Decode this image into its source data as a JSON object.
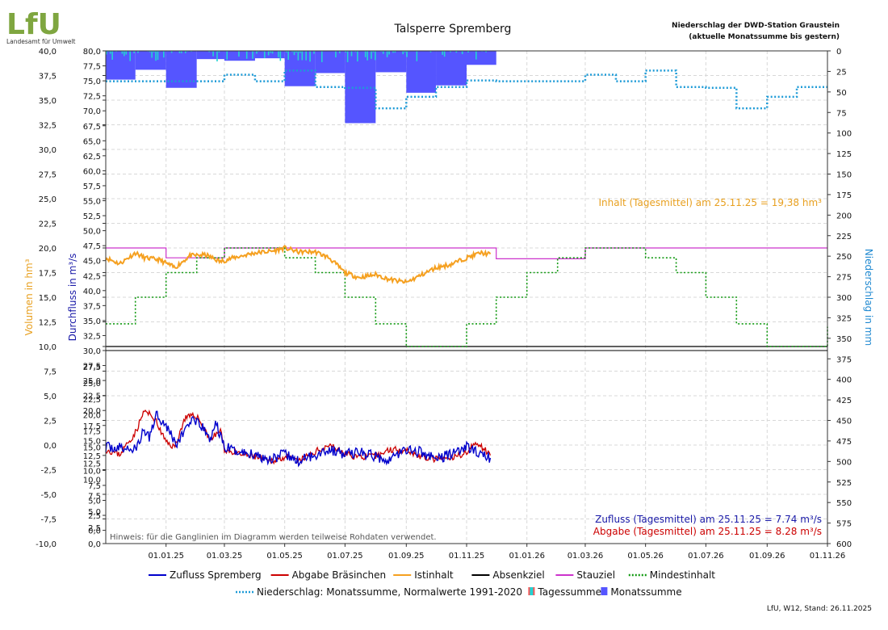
{
  "logo": {
    "mark": "LfU",
    "name": "Landesamt für Umwelt"
  },
  "title": "Talsperre Spremberg",
  "precip_note": {
    "line1": "Niederschlag der DWD-Station Graustein",
    "line2": "(aktuelle Monatssumme bis gestern)"
  },
  "footer": "LfU, W12, Stand: 26.11.2025",
  "hint": "Hinweis: für die Ganglinien im Diagramm werden teilweise Rohdaten verwendet.",
  "annotations": {
    "inhalt": "Inhalt (Tagesmittel) am 25.11.25 = 19,38 hm³",
    "zufluss": "Zufluss (Tagesmittel) am 25.11.25 = 7.74 m³/s",
    "abgabe": "Abgabe (Tagesmittel) am 25.11.25 = 8.28 m³/s"
  },
  "colors": {
    "zufluss": "#0000cc",
    "abgabe": "#cc0000",
    "istinhalt": "#f5a020",
    "absenkziel": "#000000",
    "stauziel": "#cc33cc",
    "mindestinhalt": "#119911",
    "normal": "#1e9bd7",
    "tagessumme": "#22d3d3",
    "monatssumme": "#5555ff",
    "axis_volume": "#e8a020",
    "axis_flow": "#1a1aa8",
    "axis_precip": "#1e88d0"
  },
  "axes": {
    "volume_label": "Volumen in hm³",
    "flow_label": "Durchfluss in m³/s",
    "precip_label": "Niederschlag in mm",
    "volume_ticks": [
      "40,0",
      "37,5",
      "35,0",
      "32,5",
      "30,0",
      "27,5",
      "25,0",
      "22,5",
      "20,0",
      "17,5",
      "15,0",
      "12,5",
      "10,0",
      "7,5",
      "5,0",
      "2,5",
      "0,0",
      "-2,5",
      "-5,0",
      "-7,5",
      "-10,0"
    ],
    "flow_ticks": [
      "80,0",
      "77,5",
      "75,0",
      "72,5",
      "70,0",
      "67,5",
      "65,0",
      "62,5",
      "60,0",
      "57,5",
      "55,0",
      "52,5",
      "50,0",
      "47,5",
      "45,0",
      "42,5",
      "40,0",
      "37,5",
      "35,0",
      "32,5",
      "30,0",
      "27,5",
      "25,0",
      "22,5",
      "20,0",
      "17,5",
      "15,0",
      "12,5",
      "10,0",
      "7,5",
      "5,0",
      "2,5",
      "0,0"
    ],
    "precip_ticks": [
      "0",
      "25",
      "50",
      "75",
      "100",
      "125",
      "150",
      "175",
      "200",
      "225",
      "250",
      "275",
      "300",
      "325",
      "350",
      "375",
      "400",
      "425",
      "450",
      "475",
      "500",
      "525",
      "550",
      "575",
      "600"
    ],
    "x_ticks": [
      "01.01.25",
      "01.03.25",
      "01.05.25",
      "01.07.25",
      "01.09.25",
      "01.11.25",
      "01.01.26",
      "01.03.26",
      "01.05.26",
      "01.07.26",
      "01.09.26",
      "01.11.26"
    ]
  },
  "legend": {
    "row1": [
      {
        "key": "zufluss",
        "label": "Zufluss Spremberg",
        "style": "solid"
      },
      {
        "key": "abgabe",
        "label": "Abgabe Bräsinchen",
        "style": "solid"
      },
      {
        "key": "istinhalt",
        "label": "Istinhalt",
        "style": "solid"
      },
      {
        "key": "absenkziel",
        "label": "Absenkziel",
        "style": "solid"
      },
      {
        "key": "stauziel",
        "label": "Stauziel",
        "style": "solid"
      },
      {
        "key": "mindestinhalt",
        "label": "Mindestinhalt",
        "style": "dotted"
      }
    ],
    "row2": [
      {
        "key": "normal",
        "label": "Niederschlag: Monatssumme, Normalwerte 1991-2020",
        "style": "dotted"
      },
      {
        "key": "tagessumme",
        "label": "Tagessumme",
        "style": "box2"
      },
      {
        "key": "monatssumme",
        "label": "Monatssumme",
        "style": "box"
      }
    ]
  },
  "chart_data": {
    "type": "line",
    "x_start": "01.11.24",
    "x_end": "01.11.26",
    "volume_axis": {
      "label": "Volumen in hm³",
      "ylim": [
        -10,
        40
      ]
    },
    "flow_axis": {
      "label": "Durchfluss in m³/s",
      "ylim": [
        0,
        80
      ]
    },
    "precip_axis": {
      "label": "Niederschlag in mm",
      "ylim": [
        0,
        600
      ],
      "inverted": true
    },
    "stauziel": [
      [
        "01.11.24",
        20.0
      ],
      [
        "01.01.25",
        20.0
      ],
      [
        "01.01.25",
        19.0
      ],
      [
        "01.03.25",
        19.0
      ],
      [
        "01.03.25",
        20.0
      ],
      [
        "01.12.25",
        20.0
      ],
      [
        "01.12.25",
        18.9
      ],
      [
        "01.03.26",
        18.9
      ],
      [
        "01.03.26",
        20.0
      ],
      [
        "01.11.26",
        20.0
      ]
    ],
    "absenkziel": [
      [
        "01.11.24",
        10.0
      ],
      [
        "01.11.26",
        10.0
      ]
    ],
    "mindestinhalt": [
      [
        "01.11.24",
        12.3
      ],
      [
        "01.12.24",
        12.3
      ],
      [
        "01.12.24",
        15.0
      ],
      [
        "01.01.25",
        15.0
      ],
      [
        "01.01.25",
        17.5
      ],
      [
        "01.02.25",
        17.5
      ],
      [
        "01.02.25",
        19.0
      ],
      [
        "01.03.25",
        19.0
      ],
      [
        "01.03.25",
        20.0
      ],
      [
        "01.05.25",
        20.0
      ],
      [
        "01.05.25",
        19.0
      ],
      [
        "01.06.25",
        19.0
      ],
      [
        "01.06.25",
        17.5
      ],
      [
        "01.07.25",
        17.5
      ],
      [
        "01.07.25",
        15.0
      ],
      [
        "01.08.25",
        15.0
      ],
      [
        "01.08.25",
        12.3
      ],
      [
        "01.09.25",
        12.3
      ],
      [
        "01.09.25",
        10.0
      ],
      [
        "01.11.25",
        10.0
      ],
      [
        "01.11.25",
        12.3
      ],
      [
        "01.12.25",
        12.3
      ],
      [
        "01.12.25",
        15.0
      ],
      [
        "01.01.26",
        15.0
      ],
      [
        "01.01.26",
        17.5
      ],
      [
        "01.02.26",
        17.5
      ],
      [
        "01.02.26",
        19.0
      ],
      [
        "01.03.26",
        19.0
      ],
      [
        "01.03.26",
        20.0
      ],
      [
        "01.05.26",
        20.0
      ],
      [
        "01.05.26",
        19.0
      ],
      [
        "01.06.26",
        19.0
      ],
      [
        "01.06.26",
        17.5
      ],
      [
        "01.07.26",
        17.5
      ],
      [
        "01.07.26",
        15.0
      ],
      [
        "01.08.26",
        15.0
      ],
      [
        "01.08.26",
        12.3
      ],
      [
        "01.09.26",
        12.3
      ],
      [
        "01.09.26",
        10.0
      ],
      [
        "01.11.26",
        10.0
      ],
      [
        "01.11.26",
        12.0
      ]
    ],
    "istinhalt": [
      [
        "01.11.24",
        19.0
      ],
      [
        "15.11.24",
        18.4
      ],
      [
        "01.12.24",
        19.5
      ],
      [
        "10.12.24",
        19.0
      ],
      [
        "25.12.24",
        18.8
      ],
      [
        "10.01.25",
        18.0
      ],
      [
        "25.01.25",
        19.2
      ],
      [
        "10.02.25",
        19.3
      ],
      [
        "25.02.25",
        18.6
      ],
      [
        "10.03.25",
        19.0
      ],
      [
        "01.04.25",
        19.5
      ],
      [
        "20.04.25",
        19.7
      ],
      [
        "01.05.25",
        20.0
      ],
      [
        "15.05.25",
        19.6
      ],
      [
        "01.06.25",
        19.6
      ],
      [
        "15.06.25",
        19.0
      ],
      [
        "01.07.25",
        17.5
      ],
      [
        "15.07.25",
        17.0
      ],
      [
        "01.08.25",
        17.3
      ],
      [
        "15.08.25",
        16.8
      ],
      [
        "01.09.25",
        16.5
      ],
      [
        "15.09.25",
        17.2
      ],
      [
        "01.10.25",
        18.0
      ],
      [
        "15.10.25",
        18.3
      ],
      [
        "01.11.25",
        19.0
      ],
      [
        "15.11.25",
        19.5
      ],
      [
        "25.11.25",
        19.38
      ]
    ],
    "monatssumme_mm": [
      [
        "11.24",
        35
      ],
      [
        "12.24",
        23
      ],
      [
        "01.25",
        45
      ],
      [
        "02.25",
        10
      ],
      [
        "03.25",
        12
      ],
      [
        "04.25",
        9
      ],
      [
        "05.25",
        43
      ],
      [
        "06.25",
        27
      ],
      [
        "07.25",
        88
      ],
      [
        "08.25",
        26
      ],
      [
        "09.25",
        51
      ],
      [
        "10.25",
        42
      ],
      [
        "11.25",
        17
      ]
    ],
    "normalwerte_mm": [
      [
        "11.24",
        37
      ],
      [
        "12.24",
        37
      ],
      [
        "01.25",
        37
      ],
      [
        "02.25",
        37
      ],
      [
        "03.25",
        29
      ],
      [
        "04.25",
        37
      ],
      [
        "05.25",
        24
      ],
      [
        "06.25",
        44
      ],
      [
        "07.25",
        45
      ],
      [
        "08.25",
        70
      ],
      [
        "09.25",
        56
      ],
      [
        "10.25",
        44
      ],
      [
        "11.25",
        36
      ],
      [
        "12.25",
        37
      ],
      [
        "01.26",
        37
      ],
      [
        "02.26",
        37
      ],
      [
        "03.26",
        29
      ],
      [
        "04.26",
        37
      ],
      [
        "05.26",
        24
      ],
      [
        "06.26",
        44
      ],
      [
        "07.26",
        45
      ],
      [
        "08.26",
        70
      ],
      [
        "09.26",
        56
      ],
      [
        "10.26",
        44
      ]
    ],
    "zufluss": [
      [
        "01.11.24",
        10.0
      ],
      [
        "15.11.24",
        9.8
      ],
      [
        "01.12.24",
        9.5
      ],
      [
        "10.12.24",
        13.5
      ],
      [
        "15.12.24",
        12.0
      ],
      [
        "22.12.24",
        17.0
      ],
      [
        "01.01.25",
        14.5
      ],
      [
        "12.01.25",
        10.5
      ],
      [
        "25.01.25",
        15.5
      ],
      [
        "05.02.25",
        14.5
      ],
      [
        "15.02.25",
        11.5
      ],
      [
        "20.02.25",
        15.0
      ],
      [
        "01.03.25",
        10.0
      ],
      [
        "15.03.25",
        9.0
      ],
      [
        "01.04.25",
        8.5
      ],
      [
        "15.04.25",
        7.5
      ],
      [
        "01.05.25",
        8.5
      ],
      [
        "15.05.25",
        7.0
      ],
      [
        "01.06.25",
        8.5
      ],
      [
        "15.06.25",
        9.5
      ],
      [
        "01.07.25",
        8.5
      ],
      [
        "15.07.25",
        9.0
      ],
      [
        "01.08.25",
        8.0
      ],
      [
        "15.08.25",
        7.5
      ],
      [
        "01.09.25",
        9.5
      ],
      [
        "15.09.25",
        9.0
      ],
      [
        "01.10.25",
        7.5
      ],
      [
        "15.10.25",
        8.5
      ],
      [
        "01.11.25",
        10.0
      ],
      [
        "15.11.25",
        8.5
      ],
      [
        "25.11.25",
        7.74
      ]
    ],
    "abgabe": [
      [
        "01.11.24",
        9.5
      ],
      [
        "15.11.24",
        8.5
      ],
      [
        "01.12.24",
        13.0
      ],
      [
        "10.12.24",
        17.5
      ],
      [
        "20.12.24",
        16.0
      ],
      [
        "01.01.25",
        11.0
      ],
      [
        "10.01.25",
        10.0
      ],
      [
        "20.01.25",
        16.0
      ],
      [
        "01.02.25",
        16.5
      ],
      [
        "15.02.25",
        11.5
      ],
      [
        "25.02.25",
        13.5
      ],
      [
        "01.03.25",
        9.5
      ],
      [
        "15.03.25",
        8.5
      ],
      [
        "01.04.25",
        8.0
      ],
      [
        "15.04.25",
        7.0
      ],
      [
        "01.05.25",
        8.0
      ],
      [
        "15.05.25",
        7.0
      ],
      [
        "01.06.25",
        9.0
      ],
      [
        "15.06.25",
        10.5
      ],
      [
        "01.07.25",
        8.5
      ],
      [
        "15.07.25",
        8.0
      ],
      [
        "01.08.25",
        8.0
      ],
      [
        "15.08.25",
        9.5
      ],
      [
        "01.09.25",
        9.5
      ],
      [
        "15.09.25",
        8.0
      ],
      [
        "01.10.25",
        7.5
      ],
      [
        "15.10.25",
        7.5
      ],
      [
        "01.11.25",
        9.0
      ],
      [
        "12.11.25",
        11.0
      ],
      [
        "25.11.25",
        8.28
      ]
    ]
  }
}
